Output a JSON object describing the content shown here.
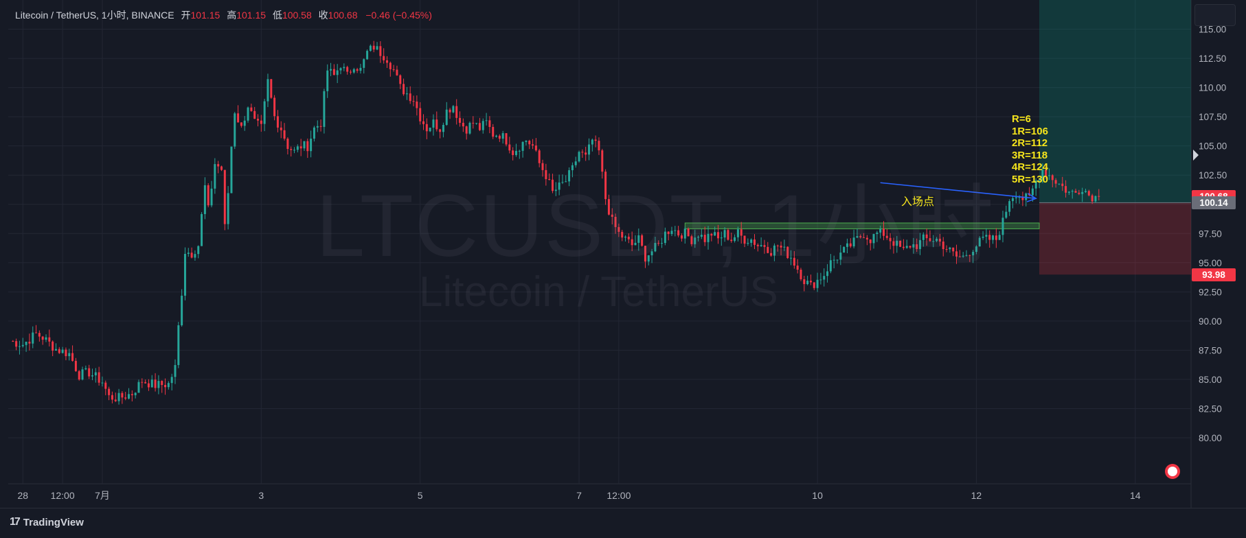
{
  "legend": {
    "symbol": "Litecoin / TetherUS, 1小时, BINANCE",
    "open_label": "开",
    "open": "101.15",
    "high_label": "高",
    "high": "101.15",
    "low_label": "低",
    "low": "100.58",
    "close_label": "收",
    "close": "100.68",
    "change": "−0.46 (−0.45%)"
  },
  "watermark": {
    "ticker": "LTCUSDT, 1小时",
    "name": "Litecoin / TetherUS"
  },
  "annotations": {
    "r_lines": [
      "R=6",
      "1R=106",
      "2R=112",
      "3R=118",
      "4R=124",
      "5R=130"
    ],
    "entry_label": "入场点"
  },
  "price_tags": [
    {
      "text": "100.68",
      "value": 100.68,
      "color": "#f23645"
    },
    {
      "text": "100.14",
      "value": 100.14,
      "color": "#6a6d78"
    },
    {
      "text": "93.98",
      "value": 93.98,
      "color": "#f23645"
    }
  ],
  "footer": {
    "brand": "TradingView"
  },
  "colors": {
    "up": "#26a69a",
    "down": "#f23645",
    "background": "#161a25",
    "grid": "#232734",
    "axis_text": "#b2b5be"
  },
  "chart_data": {
    "type": "candlestick",
    "title": "Litecoin / TetherUS, 1小时, BINANCE",
    "xlabel": "",
    "ylabel": "",
    "ylim": [
      78.0,
      117.5
    ],
    "y_ticks": [
      "80.00",
      "82.50",
      "85.00",
      "87.50",
      "90.00",
      "92.50",
      "95.00",
      "97.50",
      "100.00",
      "102.50",
      "105.00",
      "107.50",
      "110.00",
      "112.50",
      "115.00"
    ],
    "x_ticks": [
      {
        "label": "28",
        "t": 4
      },
      {
        "label": "12:00",
        "t": 16
      },
      {
        "label": "7月",
        "t": 28
      },
      {
        "label": "3",
        "t": 76
      },
      {
        "label": "5",
        "t": 124
      },
      {
        "label": "7",
        "t": 172
      },
      {
        "label": "12:00",
        "t": 184
      },
      {
        "label": "10",
        "t": 244
      },
      {
        "label": "12",
        "t": 292
      },
      {
        "label": "14",
        "t": 340
      }
    ],
    "t_range": [
      0,
      360
    ],
    "path_keypoints": [
      [
        0,
        88.3
      ],
      [
        4,
        88.0
      ],
      [
        8,
        88.9
      ],
      [
        10,
        88.6
      ],
      [
        14,
        87.6
      ],
      [
        18,
        87.2
      ],
      [
        21,
        85.4
      ],
      [
        24,
        85.6
      ],
      [
        28,
        84.8
      ],
      [
        30,
        83.5
      ],
      [
        33,
        83.4
      ],
      [
        37,
        83.8
      ],
      [
        40,
        84.9
      ],
      [
        44,
        84.5
      ],
      [
        48,
        84.6
      ],
      [
        50,
        86.0
      ],
      [
        51,
        89.5
      ],
      [
        52,
        92.5
      ],
      [
        53,
        96.0
      ],
      [
        55,
        95.8
      ],
      [
        57,
        96.5
      ],
      [
        58,
        99.0
      ],
      [
        59,
        101.5
      ],
      [
        60,
        99.5
      ],
      [
        62,
        103.5
      ],
      [
        64,
        103.0
      ],
      [
        65,
        98.0
      ],
      [
        66,
        101.0
      ],
      [
        67,
        105.0
      ],
      [
        68,
        108.0
      ],
      [
        70,
        106.5
      ],
      [
        72,
        108.5
      ],
      [
        74,
        107.0
      ],
      [
        76,
        106.5
      ],
      [
        78,
        110.5
      ],
      [
        80,
        107.5
      ],
      [
        82,
        106.5
      ],
      [
        84,
        105.0
      ],
      [
        86,
        104.5
      ],
      [
        88,
        105.0
      ],
      [
        90,
        105.0
      ],
      [
        92,
        106.5
      ],
      [
        94,
        107.0
      ],
      [
        96,
        111.5
      ],
      [
        98,
        111.0
      ],
      [
        100,
        112.0
      ],
      [
        102,
        111.0
      ],
      [
        104,
        112.0
      ],
      [
        106,
        111.5
      ],
      [
        108,
        113.0
      ],
      [
        110,
        113.5
      ],
      [
        112,
        113.0
      ],
      [
        114,
        112.5
      ],
      [
        116,
        111.5
      ],
      [
        118,
        110.0
      ],
      [
        120,
        109.5
      ],
      [
        122,
        109.0
      ],
      [
        124,
        107.5
      ],
      [
        126,
        106.5
      ],
      [
        128,
        107.0
      ],
      [
        130,
        106.5
      ],
      [
        132,
        108.0
      ],
      [
        134,
        108.5
      ],
      [
        136,
        107.0
      ],
      [
        138,
        106.5
      ],
      [
        140,
        107.0
      ],
      [
        142,
        106.5
      ],
      [
        144,
        107.0
      ],
      [
        146,
        106.0
      ],
      [
        148,
        106.0
      ],
      [
        150,
        105.5
      ],
      [
        152,
        104.5
      ],
      [
        154,
        105.0
      ],
      [
        156,
        105.5
      ],
      [
        158,
        105.0
      ],
      [
        160,
        103.5
      ],
      [
        162,
        102.5
      ],
      [
        164,
        101.0
      ],
      [
        166,
        101.5
      ],
      [
        168,
        102.0
      ],
      [
        170,
        103.0
      ],
      [
        172,
        104.5
      ],
      [
        174,
        104.0
      ],
      [
        176,
        105.5
      ],
      [
        178,
        104.5
      ],
      [
        180,
        100.5
      ],
      [
        182,
        98.5
      ],
      [
        184,
        97.5
      ],
      [
        186,
        97.0
      ],
      [
        188,
        96.5
      ],
      [
        190,
        97.0
      ],
      [
        192,
        95.5
      ],
      [
        194,
        96.0
      ],
      [
        196,
        96.5
      ],
      [
        198,
        97.5
      ],
      [
        200,
        98.0
      ],
      [
        202,
        97.5
      ],
      [
        204,
        97.5
      ],
      [
        206,
        97.0
      ],
      [
        208,
        97.5
      ],
      [
        210,
        97.0
      ],
      [
        212,
        97.5
      ],
      [
        214,
        97.0
      ],
      [
        216,
        97.5
      ],
      [
        218,
        97.0
      ],
      [
        220,
        97.5
      ],
      [
        222,
        97.0
      ],
      [
        224,
        97.0
      ],
      [
        226,
        96.5
      ],
      [
        228,
        96.5
      ],
      [
        230,
        96.0
      ],
      [
        232,
        96.5
      ],
      [
        234,
        96.0
      ],
      [
        236,
        95.5
      ],
      [
        238,
        94.5
      ],
      [
        240,
        93.5
      ],
      [
        242,
        93.0
      ],
      [
        244,
        93.5
      ],
      [
        246,
        94.0
      ],
      [
        248,
        95.0
      ],
      [
        250,
        95.5
      ],
      [
        252,
        96.0
      ],
      [
        254,
        96.5
      ],
      [
        256,
        97.0
      ],
      [
        258,
        97.5
      ],
      [
        260,
        97.0
      ],
      [
        262,
        97.5
      ],
      [
        264,
        97.5
      ],
      [
        266,
        97.0
      ],
      [
        268,
        96.5
      ],
      [
        270,
        96.0
      ],
      [
        272,
        96.5
      ],
      [
        274,
        96.5
      ],
      [
        276,
        97.0
      ],
      [
        278,
        97.0
      ],
      [
        280,
        97.0
      ],
      [
        282,
        96.5
      ],
      [
        284,
        96.0
      ],
      [
        286,
        95.5
      ],
      [
        288,
        95.5
      ],
      [
        290,
        96.0
      ],
      [
        292,
        96.5
      ],
      [
        294,
        97.0
      ],
      [
        296,
        97.0
      ],
      [
        298,
        97.0
      ],
      [
        300,
        98.5
      ],
      [
        302,
        100.5
      ],
      [
        304,
        101.0
      ],
      [
        306,
        100.5
      ],
      [
        308,
        100.5
      ],
      [
        310,
        102.0
      ],
      [
        312,
        103.0
      ],
      [
        314,
        102.5
      ],
      [
        316,
        102.0
      ],
      [
        318,
        101.5
      ],
      [
        320,
        101.0
      ],
      [
        322,
        101.0
      ],
      [
        324,
        101.5
      ],
      [
        326,
        100.8
      ],
      [
        328,
        100.6
      ],
      [
        329,
        100.7
      ]
    ],
    "entry_zone": {
      "t_start": 204,
      "t_end": 311,
      "low": 97.9,
      "high": 98.4
    },
    "position": {
      "t_start": 311,
      "entry": 100.14,
      "target": 117.5,
      "stop": 93.98
    },
    "arrow": {
      "from_t": 263,
      "from_price": 101.85,
      "to_t": 310,
      "to_price": 100.5
    }
  }
}
